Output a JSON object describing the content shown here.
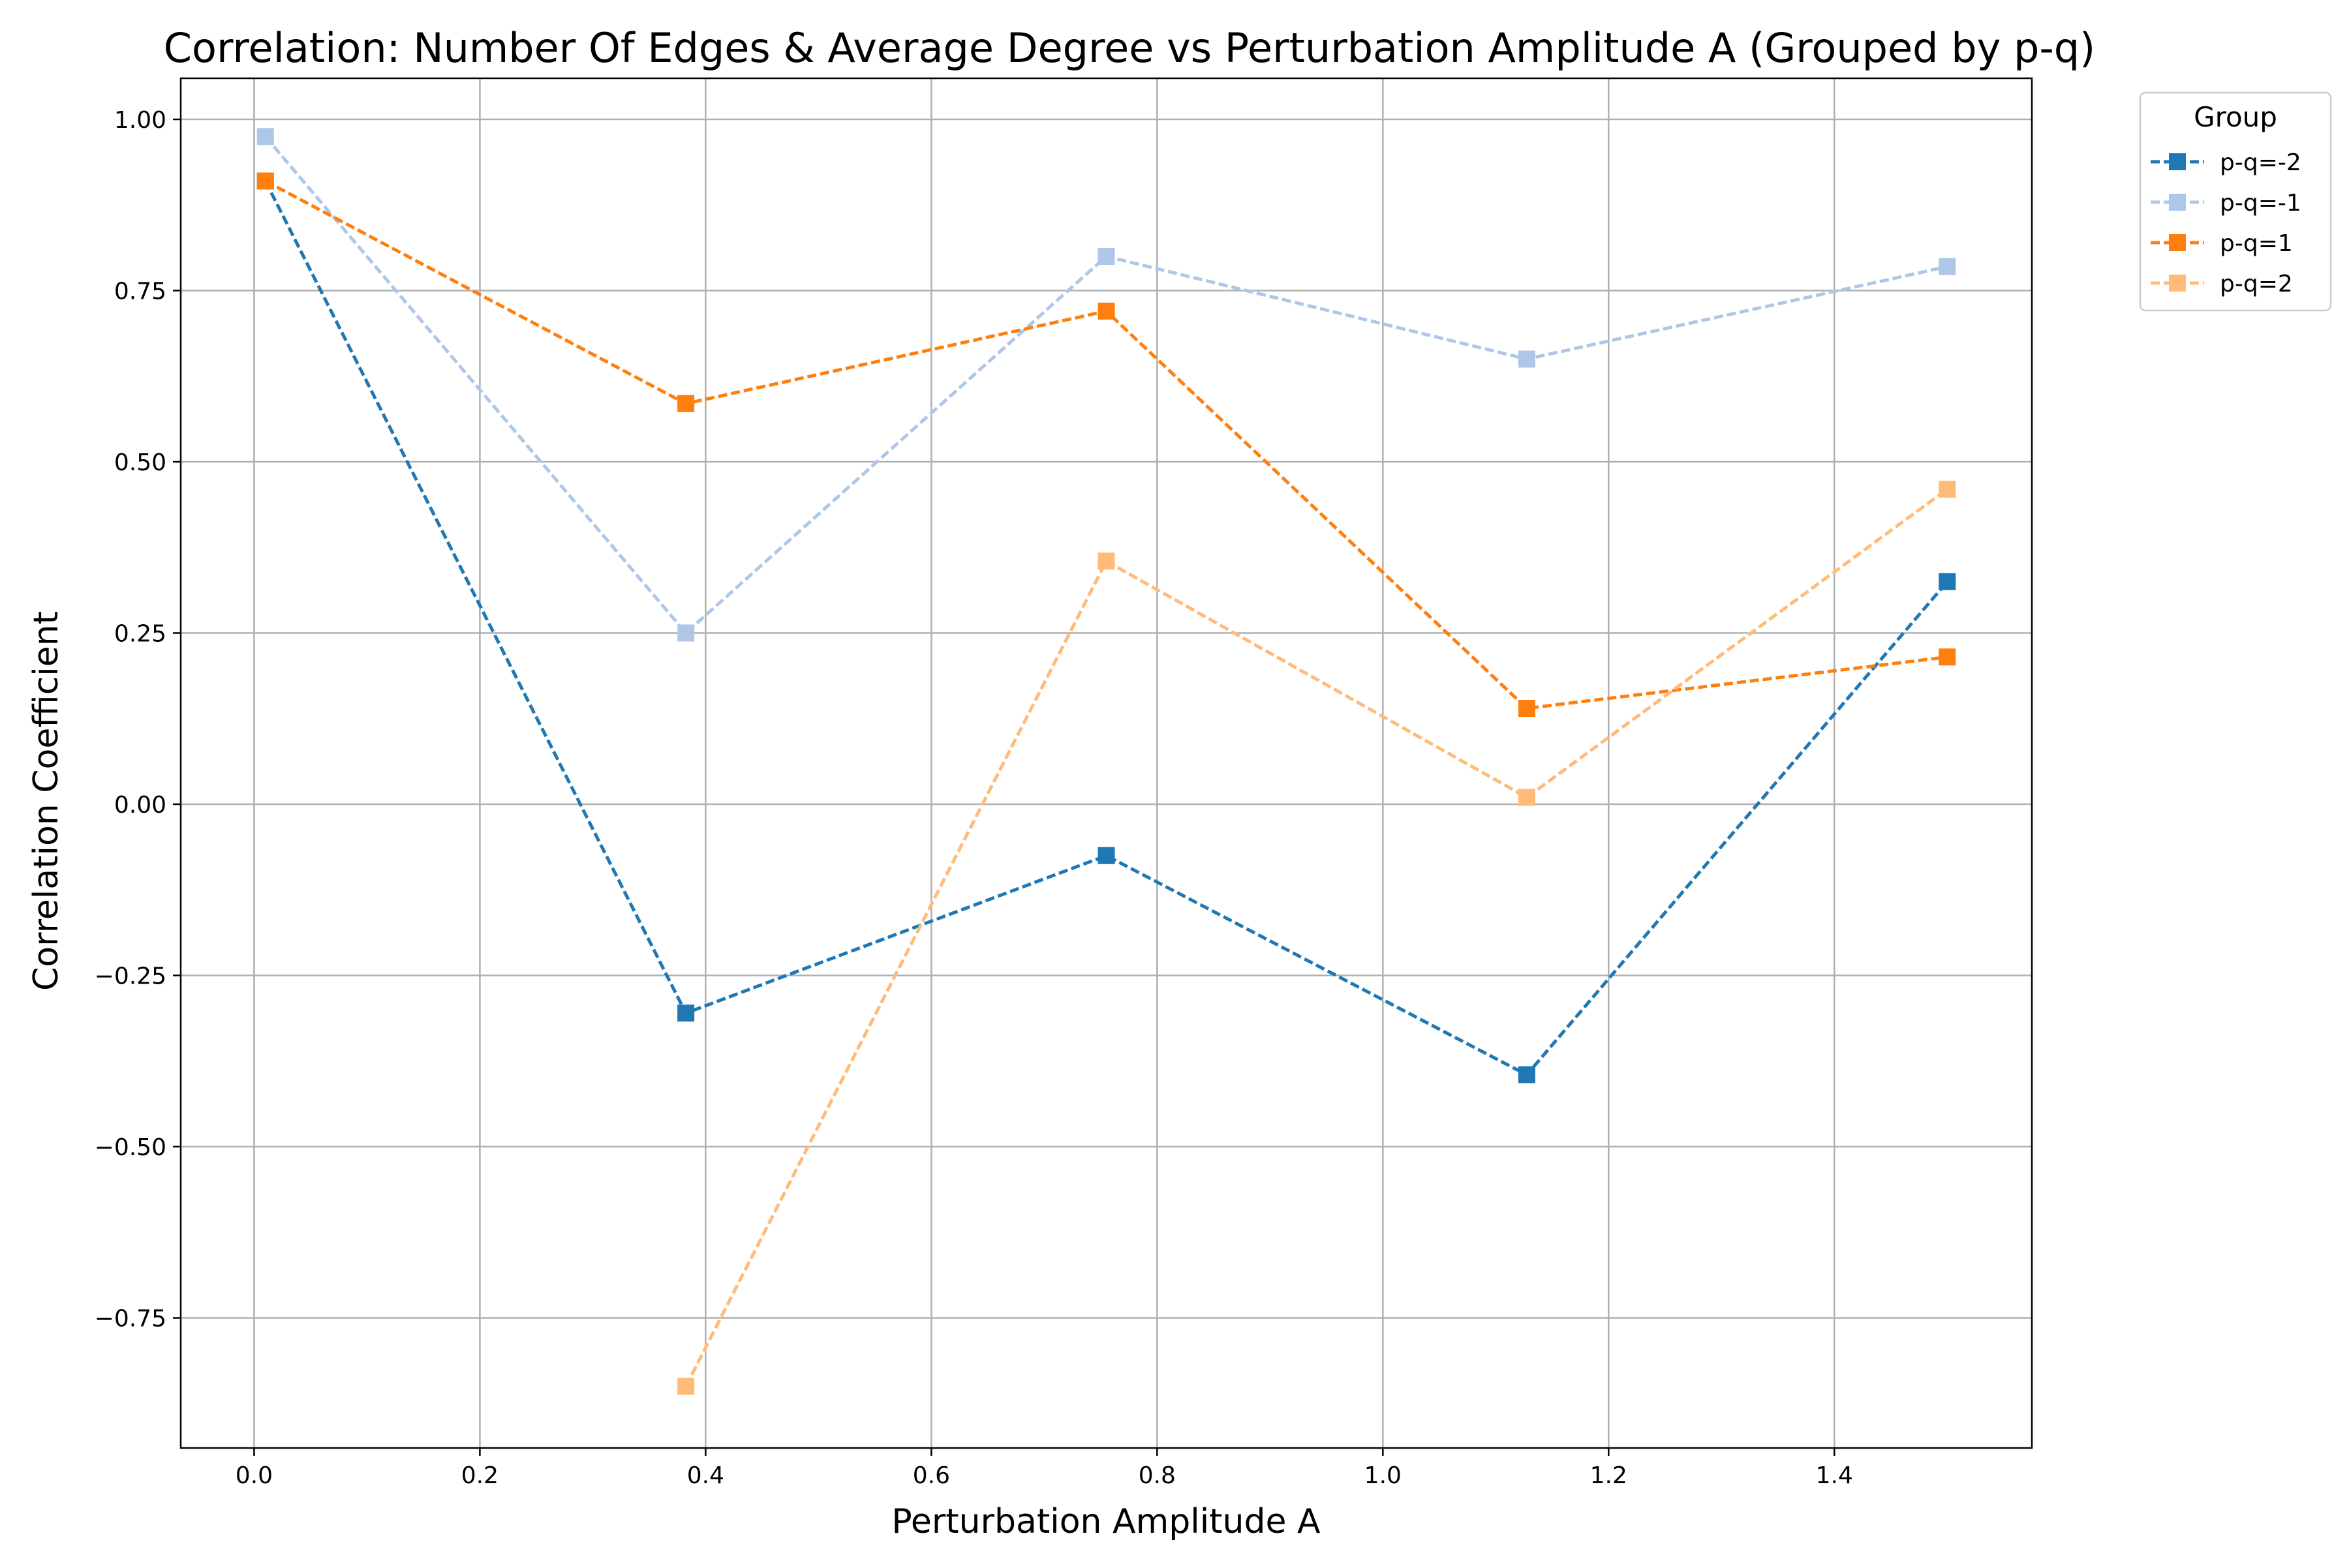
{
  "chart_data": {
    "type": "line",
    "title": "Correlation: Number Of Edges & Average Degree vs Perturbation Amplitude A (Grouped by p-q)",
    "xlabel": "Perturbation Amplitude A",
    "ylabel": "Correlation Coefficient",
    "xlim": [
      -0.065,
      1.575
    ],
    "ylim": [
      -0.94,
      1.06
    ],
    "xticks": [
      0.0,
      0.2,
      0.4,
      0.6,
      0.8,
      1.0,
      1.2,
      1.4
    ],
    "xtick_labels": [
      "0.0",
      "0.2",
      "0.4",
      "0.6",
      "0.8",
      "1.0",
      "1.2",
      "1.4"
    ],
    "yticks": [
      1.0,
      0.75,
      0.5,
      0.25,
      0.0,
      -0.25,
      -0.5,
      -0.75
    ],
    "ytick_labels": [
      "1.00",
      "0.75",
      "0.50",
      "0.25",
      "0.00",
      "−0.25",
      "−0.50",
      "−0.75"
    ],
    "grid": true,
    "legend": {
      "title": "Group",
      "placement": "outside-top-right"
    },
    "line_style": "dashed",
    "marker": "square",
    "series": [
      {
        "name": "p-q=-2",
        "color": "#1f77b4",
        "x": [
          0.01,
          0.3825,
          0.755,
          1.1275,
          1.5
        ],
        "y": [
          0.91,
          -0.305,
          -0.075,
          -0.395,
          0.325
        ]
      },
      {
        "name": "p-q=-1",
        "color": "#aec7e8",
        "x": [
          0.01,
          0.3825,
          0.755,
          1.1275,
          1.5
        ],
        "y": [
          0.975,
          0.25,
          0.8,
          0.65,
          0.785
        ]
      },
      {
        "name": "p-q=1",
        "color": "#ff7f0e",
        "x": [
          0.01,
          0.3825,
          0.755,
          1.1275,
          1.5
        ],
        "y": [
          0.91,
          0.585,
          0.72,
          0.14,
          0.215
        ]
      },
      {
        "name": "p-q=2",
        "color": "#ffbb78",
        "x": [
          0.3825,
          0.755,
          1.1275,
          1.5
        ],
        "y": [
          -0.85,
          0.355,
          0.01,
          0.46
        ]
      }
    ]
  }
}
